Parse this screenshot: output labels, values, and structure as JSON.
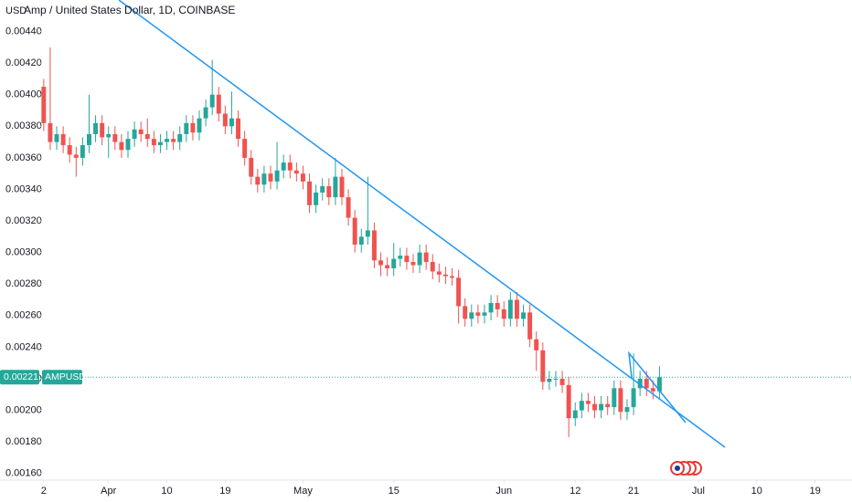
{
  "chart_data": {
    "type": "candlestick",
    "title": "Amp / United States Dollar, 1D, COINBASE",
    "currency": "USD",
    "symbol": "AMPUSD",
    "last_price": 0.00221,
    "up_color": "#26a69a",
    "down_color": "#ef5350",
    "xlim": [
      -0.4,
      124.7
    ],
    "ylim": [
      0.0015,
      0.0046
    ],
    "xticks": [
      {
        "value": 0,
        "label": "2"
      },
      {
        "value": 10,
        "label": "Apr"
      },
      {
        "value": 19,
        "label": "10"
      },
      {
        "value": 28,
        "label": "19"
      },
      {
        "value": 40,
        "label": "May"
      },
      {
        "value": 54,
        "label": "15"
      },
      {
        "value": 71,
        "label": "Jun"
      },
      {
        "value": 82,
        "label": "12"
      },
      {
        "value": 91,
        "label": "21"
      },
      {
        "value": 101,
        "label": "Jul"
      },
      {
        "value": 110,
        "label": "10"
      },
      {
        "value": 119,
        "label": "19"
      }
    ],
    "yticks": [
      {
        "value": 0.0016,
        "label": "0.00160"
      },
      {
        "value": 0.0018,
        "label": "0.00180"
      },
      {
        "value": 0.002,
        "label": "0.00200"
      },
      {
        "value": 0.0022,
        "label": "0.00220"
      },
      {
        "value": 0.0024,
        "label": "0.00240"
      },
      {
        "value": 0.0026,
        "label": "0.00260"
      },
      {
        "value": 0.0028,
        "label": "0.00280"
      },
      {
        "value": 0.003,
        "label": "0.00300"
      },
      {
        "value": 0.0032,
        "label": "0.00320"
      },
      {
        "value": 0.0034,
        "label": "0.00340"
      },
      {
        "value": 0.0036,
        "label": "0.00360"
      },
      {
        "value": 0.0038,
        "label": "0.00380"
      },
      {
        "value": 0.004,
        "label": "0.00400"
      },
      {
        "value": 0.0042,
        "label": "0.00420"
      },
      {
        "value": 0.0044,
        "label": "0.00440"
      }
    ],
    "x": [
      0,
      1,
      2,
      3,
      4,
      5,
      6,
      7,
      8,
      9,
      10,
      11,
      12,
      13,
      14,
      15,
      16,
      17,
      18,
      19,
      20,
      21,
      22,
      23,
      24,
      25,
      26,
      27,
      28,
      29,
      30,
      31,
      32,
      33,
      34,
      35,
      36,
      37,
      38,
      39,
      40,
      41,
      42,
      43,
      44,
      45,
      46,
      47,
      48,
      49,
      50,
      51,
      52,
      53,
      54,
      55,
      56,
      57,
      58,
      59,
      60,
      61,
      62,
      63,
      64,
      65,
      66,
      67,
      68,
      69,
      70,
      71,
      72,
      73,
      74,
      75,
      76,
      77,
      78,
      79,
      80,
      81,
      82,
      83,
      84,
      85,
      86,
      87,
      88,
      89,
      90,
      91,
      92,
      93,
      94,
      95
    ],
    "open": [
      0.00405,
      0.00382,
      0.0037,
      0.00375,
      0.00368,
      0.00362,
      0.0036,
      0.00368,
      0.00375,
      0.00382,
      0.00373,
      0.00375,
      0.0037,
      0.00365,
      0.00372,
      0.00378,
      0.00375,
      0.00372,
      0.00368,
      0.0037,
      0.00372,
      0.0037,
      0.00375,
      0.00382,
      0.00376,
      0.00385,
      0.00392,
      0.004,
      0.00388,
      0.0038,
      0.00385,
      0.00372,
      0.0036,
      0.00348,
      0.00343,
      0.0035,
      0.00345,
      0.00352,
      0.00357,
      0.00352,
      0.0035,
      0.00345,
      0.0033,
      0.00338,
      0.00342,
      0.00335,
      0.00348,
      0.00335,
      0.00322,
      0.00305,
      0.0031,
      0.00314,
      0.00295,
      0.00292,
      0.0029,
      0.00296,
      0.00298,
      0.00294,
      0.00292,
      0.003,
      0.00294,
      0.00288,
      0.00286,
      0.00285,
      0.00284,
      0.00266,
      0.00258,
      0.00262,
      0.0026,
      0.00262,
      0.00268,
      0.00264,
      0.00258,
      0.0027,
      0.00258,
      0.00262,
      0.00245,
      0.00238,
      0.00218,
      0.0022,
      0.0022,
      0.00216,
      0.00195,
      0.002,
      0.00206,
      0.00204,
      0.002,
      0.00204,
      0.00202,
      0.00214,
      0.00199,
      0.00202,
      0.00214,
      0.0022,
      0.00214,
      0.00212
    ],
    "high": [
      0.0041,
      0.0043,
      0.0038,
      0.0038,
      0.00373,
      0.00367,
      0.00373,
      0.004,
      0.00387,
      0.00387,
      0.0038,
      0.0038,
      0.00375,
      0.00377,
      0.00383,
      0.00383,
      0.00385,
      0.00377,
      0.00375,
      0.00377,
      0.00377,
      0.0038,
      0.00387,
      0.00387,
      0.0039,
      0.00397,
      0.00422,
      0.00405,
      0.00393,
      0.00402,
      0.0039,
      0.00377,
      0.00365,
      0.00353,
      0.00355,
      0.00355,
      0.0037,
      0.00362,
      0.00362,
      0.00357,
      0.00355,
      0.0035,
      0.00343,
      0.00347,
      0.00347,
      0.0036,
      0.00353,
      0.0034,
      0.00327,
      0.00315,
      0.00348,
      0.00319,
      0.003,
      0.00297,
      0.00306,
      0.00303,
      0.00303,
      0.00299,
      0.00305,
      0.00305,
      0.00299,
      0.00293,
      0.00291,
      0.0029,
      0.00289,
      0.00271,
      0.00267,
      0.00267,
      0.00267,
      0.00273,
      0.00273,
      0.00269,
      0.00275,
      0.00275,
      0.00267,
      0.00267,
      0.0025,
      0.00243,
      0.00225,
      0.00225,
      0.00225,
      0.00221,
      0.00205,
      0.00211,
      0.00211,
      0.00209,
      0.00209,
      0.00209,
      0.00219,
      0.00219,
      0.00207,
      0.00236,
      0.00225,
      0.00225,
      0.00219,
      0.00228
    ],
    "low": [
      0.00377,
      0.00365,
      0.00365,
      0.00363,
      0.00357,
      0.00348,
      0.00355,
      0.00363,
      0.0037,
      0.00368,
      0.0036,
      0.00365,
      0.0036,
      0.0036,
      0.00367,
      0.0037,
      0.00367,
      0.00363,
      0.00363,
      0.00365,
      0.00365,
      0.00365,
      0.0037,
      0.00371,
      0.00371,
      0.0038,
      0.00387,
      0.00383,
      0.00375,
      0.00375,
      0.00367,
      0.00355,
      0.00343,
      0.00338,
      0.00338,
      0.0034,
      0.0034,
      0.00347,
      0.00347,
      0.00345,
      0.0034,
      0.00325,
      0.00325,
      0.00333,
      0.0033,
      0.0033,
      0.0033,
      0.00317,
      0.003,
      0.003,
      0.00305,
      0.0029,
      0.00285,
      0.00285,
      0.00285,
      0.00291,
      0.00289,
      0.00287,
      0.00287,
      0.00289,
      0.00283,
      0.00281,
      0.0028,
      0.00279,
      0.00255,
      0.00253,
      0.00253,
      0.00255,
      0.00255,
      0.00257,
      0.00259,
      0.00253,
      0.00253,
      0.00253,
      0.00253,
      0.0024,
      0.00225,
      0.00213,
      0.00213,
      0.00215,
      0.00211,
      0.00183,
      0.0019,
      0.00195,
      0.00199,
      0.00195,
      0.00195,
      0.00197,
      0.00197,
      0.00194,
      0.00194,
      0.00197,
      0.00209,
      0.00209,
      0.00207,
      0.00207
    ],
    "close": [
      0.00382,
      0.0037,
      0.00375,
      0.00368,
      0.00362,
      0.0036,
      0.00368,
      0.00375,
      0.00382,
      0.00373,
      0.00375,
      0.0037,
      0.00365,
      0.00372,
      0.00378,
      0.00375,
      0.00372,
      0.00368,
      0.0037,
      0.00372,
      0.0037,
      0.00375,
      0.00382,
      0.00376,
      0.00385,
      0.00392,
      0.004,
      0.00388,
      0.0038,
      0.00385,
      0.00372,
      0.0036,
      0.00348,
      0.00343,
      0.0035,
      0.00345,
      0.00352,
      0.00357,
      0.00352,
      0.0035,
      0.00345,
      0.0033,
      0.00338,
      0.00342,
      0.00335,
      0.00348,
      0.00335,
      0.00322,
      0.00305,
      0.0031,
      0.00314,
      0.00295,
      0.00292,
      0.0029,
      0.00296,
      0.00298,
      0.00294,
      0.00292,
      0.003,
      0.00294,
      0.00288,
      0.00286,
      0.00285,
      0.00284,
      0.00266,
      0.00258,
      0.00262,
      0.0026,
      0.00262,
      0.00268,
      0.00264,
      0.00258,
      0.0027,
      0.00258,
      0.00262,
      0.00245,
      0.00238,
      0.00218,
      0.0022,
      0.0022,
      0.00216,
      0.00195,
      0.002,
      0.00206,
      0.00204,
      0.002,
      0.00204,
      0.00202,
      0.00214,
      0.00199,
      0.00202,
      0.00214,
      0.0022,
      0.00214,
      0.00212,
      0.00221
    ]
  }
}
